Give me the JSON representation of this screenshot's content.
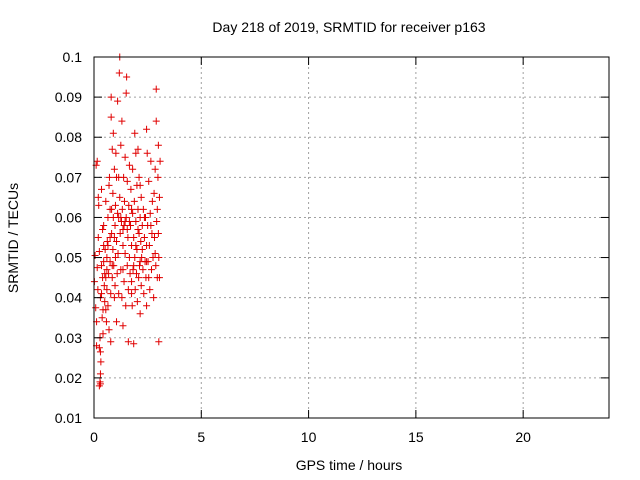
{
  "chart_data": {
    "type": "scatter",
    "title": "Day 218 of 2019, SRMTID for receiver p163",
    "xlabel": "GPS time / hours",
    "ylabel": "SRMTID / TECUs",
    "xlim": [
      0,
      24
    ],
    "ylim": [
      0.01,
      0.1
    ],
    "xticks": [
      0,
      5,
      10,
      15,
      20
    ],
    "xtick_labels": [
      "0",
      "5",
      "10",
      "15",
      "20"
    ],
    "yticks": [
      0.01,
      0.02,
      0.03,
      0.04,
      0.05,
      0.06,
      0.07,
      0.08,
      0.09,
      0.1
    ],
    "ytick_labels": [
      "0.01",
      "0.02",
      "0.03",
      "0.04",
      "0.05",
      "0.06",
      "0.07",
      "0.08",
      "0.09",
      "0.1"
    ],
    "grid": true,
    "marker": "+",
    "marker_color": "#e00000",
    "series": [
      {
        "points": [
          [
            0.02,
            0.044
          ],
          [
            0.05,
            0.0505
          ],
          [
            0.08,
            0.0375
          ],
          [
            0.1,
            0.073
          ],
          [
            0.12,
            0.034
          ],
          [
            0.12,
            0.028
          ],
          [
            0.15,
            0.0475
          ],
          [
            0.15,
            0.074
          ],
          [
            0.18,
            0.042
          ],
          [
            0.2,
            0.055
          ],
          [
            0.2,
            0.065
          ],
          [
            0.22,
            0.063
          ],
          [
            0.25,
            0.018
          ],
          [
            0.25,
            0.0275
          ],
          [
            0.25,
            0.0515
          ],
          [
            0.28,
            0.019
          ],
          [
            0.28,
            0.03
          ],
          [
            0.3,
            0.0185
          ],
          [
            0.3,
            0.0265
          ],
          [
            0.3,
            0.021
          ],
          [
            0.32,
            0.024
          ],
          [
            0.35,
            0.067
          ],
          [
            0.35,
            0.041
          ],
          [
            0.35,
            0.048
          ],
          [
            0.38,
            0.035
          ],
          [
            0.4,
            0.045
          ],
          [
            0.4,
            0.057
          ],
          [
            0.42,
            0.037
          ],
          [
            0.42,
            0.031
          ],
          [
            0.45,
            0.049
          ],
          [
            0.45,
            0.058
          ],
          [
            0.48,
            0.043
          ],
          [
            0.5,
            0.039
          ],
          [
            0.5,
            0.046
          ],
          [
            0.52,
            0.052
          ],
          [
            0.55,
            0.037
          ],
          [
            0.55,
            0.045
          ],
          [
            0.58,
            0.034
          ],
          [
            0.6,
            0.05
          ],
          [
            0.6,
            0.042
          ],
          [
            0.62,
            0.054
          ],
          [
            0.65,
            0.038
          ],
          [
            0.65,
            0.06
          ],
          [
            0.68,
            0.046
          ],
          [
            0.7,
            0.032
          ],
          [
            0.7,
            0.068
          ],
          [
            0.72,
            0.07
          ],
          [
            0.75,
            0.055
          ],
          [
            0.75,
            0.049
          ],
          [
            0.78,
            0.041
          ],
          [
            0.78,
            0.029
          ],
          [
            0.8,
            0.09
          ],
          [
            0.8,
            0.085
          ],
          [
            0.82,
            0.062
          ],
          [
            0.82,
            0.056
          ],
          [
            0.85,
            0.077
          ],
          [
            0.85,
            0.045
          ],
          [
            0.88,
            0.066
          ],
          [
            0.88,
            0.052
          ],
          [
            0.9,
            0.081
          ],
          [
            0.9,
            0.06
          ],
          [
            0.92,
            0.048
          ],
          [
            0.95,
            0.072
          ],
          [
            0.95,
            0.04
          ],
          [
            0.98,
            0.058
          ],
          [
            0.98,
            0.043
          ],
          [
            1.0,
            0.063
          ],
          [
            1.0,
            0.05
          ],
          [
            1.02,
            0.076
          ],
          [
            1.05,
            0.054
          ],
          [
            1.05,
            0.034
          ],
          [
            1.08,
            0.046
          ],
          [
            1.1,
            0.089
          ],
          [
            1.1,
            0.061
          ],
          [
            1.12,
            0.051
          ],
          [
            1.15,
            0.07
          ],
          [
            1.15,
            0.041
          ],
          [
            1.18,
            0.096
          ],
          [
            1.2,
            0.1
          ],
          [
            1.2,
            0.065
          ],
          [
            1.22,
            0.056
          ],
          [
            1.25,
            0.047
          ],
          [
            1.25,
            0.078
          ],
          [
            1.28,
            0.059
          ],
          [
            1.3,
            0.084
          ],
          [
            1.3,
            0.04
          ],
          [
            1.32,
            0.062
          ],
          [
            1.35,
            0.053
          ],
          [
            1.35,
            0.033
          ],
          [
            1.38,
            0.07
          ],
          [
            1.4,
            0.044
          ],
          [
            1.4,
            0.058
          ],
          [
            1.42,
            0.064
          ],
          [
            1.45,
            0.051
          ],
          [
            1.45,
            0.075
          ],
          [
            1.48,
            0.038
          ],
          [
            1.5,
            0.091
          ],
          [
            1.5,
            0.06
          ],
          [
            1.52,
            0.095
          ],
          [
            1.55,
            0.048
          ],
          [
            1.55,
            0.069
          ],
          [
            1.58,
            0.055
          ],
          [
            1.6,
            0.042
          ],
          [
            1.6,
            0.029
          ],
          [
            1.62,
            0.063
          ],
          [
            1.65,
            0.05
          ],
          [
            1.65,
            0.073
          ],
          [
            1.68,
            0.046
          ],
          [
            1.7,
            0.058
          ],
          [
            1.72,
            0.067
          ],
          [
            1.75,
            0.044
          ],
          [
            1.75,
            0.053
          ],
          [
            1.78,
            0.038
          ],
          [
            1.8,
            0.061
          ],
          [
            1.8,
            0.072
          ],
          [
            1.82,
            0.047
          ],
          [
            1.85,
            0.055
          ],
          [
            1.85,
            0.0285
          ],
          [
            1.88,
            0.064
          ],
          [
            1.9,
            0.081
          ],
          [
            1.9,
            0.05
          ],
          [
            1.92,
            0.042
          ],
          [
            1.95,
            0.059
          ],
          [
            1.95,
            0.076
          ],
          [
            1.98,
            0.046
          ],
          [
            2.0,
            0.068
          ],
          [
            2.0,
            0.052
          ],
          [
            2.02,
            0.039
          ],
          [
            2.05,
            0.062
          ],
          [
            2.05,
            0.077
          ],
          [
            2.08,
            0.045
          ],
          [
            2.1,
            0.056
          ],
          [
            2.1,
            0.07
          ],
          [
            2.12,
            0.048
          ],
          [
            2.15,
            0.06
          ],
          [
            2.15,
            0.036
          ],
          [
            2.18,
            0.054
          ],
          [
            2.2,
            0.065
          ],
          [
            2.2,
            0.043
          ],
          [
            2.22,
            0.05
          ],
          [
            2.25,
            0.058
          ],
          [
            2.28,
            0.047
          ],
          [
            2.3,
            0.062
          ],
          [
            2.32,
            0.041
          ],
          [
            2.35,
            0.055
          ],
          [
            2.38,
            0.049
          ],
          [
            2.4,
            0.06
          ],
          [
            2.42,
            0.045
          ],
          [
            2.45,
            0.082
          ],
          [
            2.45,
            0.053
          ],
          [
            2.48,
            0.076
          ],
          [
            2.5,
            0.058
          ],
          [
            2.52,
            0.049
          ],
          [
            2.55,
            0.069
          ],
          [
            2.58,
            0.053
          ],
          [
            2.6,
            0.042
          ],
          [
            2.62,
            0.061
          ],
          [
            2.65,
            0.074
          ],
          [
            2.68,
            0.047
          ],
          [
            2.7,
            0.056
          ],
          [
            2.72,
            0.064
          ],
          [
            2.75,
            0.05
          ],
          [
            2.78,
            0.04
          ],
          [
            2.8,
            0.066
          ],
          [
            2.82,
            0.055
          ],
          [
            2.85,
            0.072
          ],
          [
            2.88,
            0.048
          ],
          [
            2.9,
            0.092
          ],
          [
            2.9,
            0.084
          ],
          [
            2.92,
            0.059
          ],
          [
            2.95,
            0.062
          ],
          [
            2.95,
            0.045
          ],
          [
            2.98,
            0.07
          ],
          [
            3.0,
            0.056
          ],
          [
            3.0,
            0.078
          ],
          [
            3.02,
            0.05
          ],
          [
            3.02,
            0.029
          ],
          [
            3.05,
            0.065
          ],
          [
            3.05,
            0.045
          ],
          [
            3.08,
            0.074
          ],
          [
            0.55,
            0.064
          ],
          [
            0.65,
            0.053
          ],
          [
            0.75,
            0.062
          ],
          [
            1.05,
            0.07
          ],
          [
            1.15,
            0.06
          ],
          [
            1.25,
            0.06
          ],
          [
            1.35,
            0.047
          ],
          [
            1.45,
            0.059
          ],
          [
            1.55,
            0.057
          ],
          [
            1.65,
            0.059
          ],
          [
            1.75,
            0.062
          ],
          [
            1.85,
            0.048
          ],
          [
            1.95,
            0.053
          ],
          [
            2.05,
            0.057
          ],
          [
            2.15,
            0.049
          ],
          [
            2.25,
            0.052
          ],
          [
            2.35,
            0.06
          ],
          [
            2.45,
            0.049
          ],
          [
            2.55,
            0.045
          ],
          [
            2.65,
            0.058
          ],
          [
            0.45,
            0.053
          ],
          [
            0.85,
            0.048
          ],
          [
            0.95,
            0.055
          ],
          [
            1.35,
            0.057
          ],
          [
            1.75,
            0.041
          ],
          [
            2.15,
            0.068
          ],
          [
            2.45,
            0.038
          ],
          [
            2.85,
            0.051
          ],
          [
            0.3,
            0.04
          ],
          [
            0.6,
            0.047
          ]
        ]
      }
    ]
  }
}
